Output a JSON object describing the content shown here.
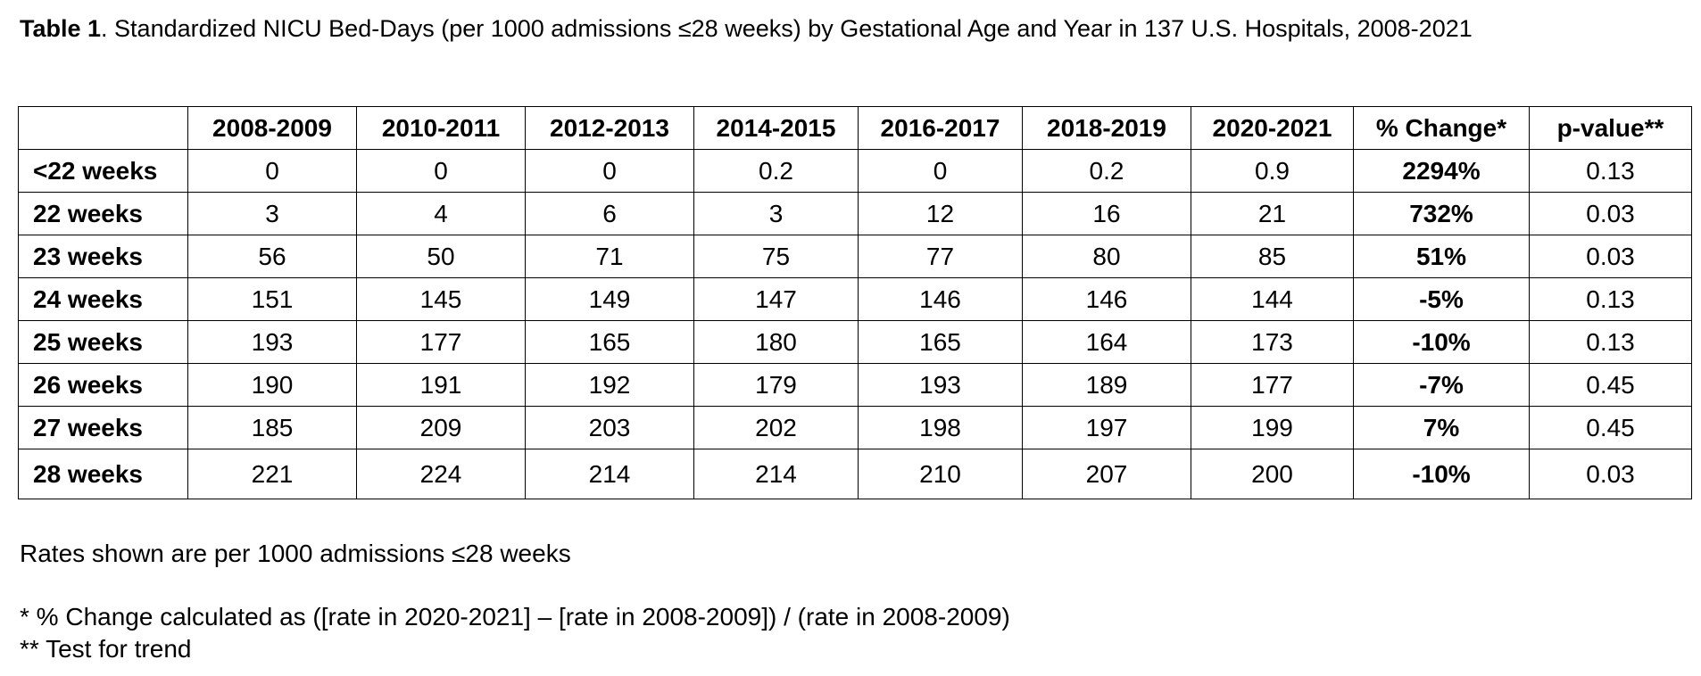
{
  "caption": {
    "label": "Table 1",
    "text": ". Standardized NICU Bed-Days (per 1000 admissions ≤28 weeks) by Gestational Age and Year in 137 U.S. Hospitals, 2008-2021"
  },
  "table": {
    "columns": [
      "",
      "2008-2009",
      "2010-2011",
      "2012-2013",
      "2014-2015",
      "2016-2017",
      "2018-2019",
      "2020-2021",
      "% Change*",
      "p-value**"
    ],
    "rows": [
      {
        "label": "<22 weeks",
        "values": [
          "0",
          "0",
          "0",
          "0.2",
          "0",
          "0.2",
          "0.9"
        ],
        "pct_change": "2294%",
        "p_value": "0.13"
      },
      {
        "label": "22 weeks",
        "values": [
          "3",
          "4",
          "6",
          "3",
          "12",
          "16",
          "21"
        ],
        "pct_change": "732%",
        "p_value": "0.03"
      },
      {
        "label": "23 weeks",
        "values": [
          "56",
          "50",
          "71",
          "75",
          "77",
          "80",
          "85"
        ],
        "pct_change": "51%",
        "p_value": "0.03"
      },
      {
        "label": "24 weeks",
        "values": [
          "151",
          "145",
          "149",
          "147",
          "146",
          "146",
          "144"
        ],
        "pct_change": "-5%",
        "p_value": "0.13"
      },
      {
        "label": "25 weeks",
        "values": [
          "193",
          "177",
          "165",
          "180",
          "165",
          "164",
          "173"
        ],
        "pct_change": "-10%",
        "p_value": "0.13"
      },
      {
        "label": "26 weeks",
        "values": [
          "190",
          "191",
          "192",
          "179",
          "193",
          "189",
          "177"
        ],
        "pct_change": "-7%",
        "p_value": "0.45"
      },
      {
        "label": "27 weeks",
        "values": [
          "185",
          "209",
          "203",
          "202",
          "198",
          "197",
          "199"
        ],
        "pct_change": "7%",
        "p_value": "0.45"
      },
      {
        "label": "28 weeks",
        "values": [
          "221",
          "224",
          "214",
          "214",
          "210",
          "207",
          "200"
        ],
        "pct_change": "-10%",
        "p_value": "0.03"
      }
    ]
  },
  "notes": {
    "rates": "Rates shown are per 1000 admissions ≤28 weeks",
    "pct_change": "* % Change calculated as ([rate in 2020-2021] – [rate in 2008-2009]) / (rate in 2008-2009)",
    "p_value": "** Test for trend"
  }
}
